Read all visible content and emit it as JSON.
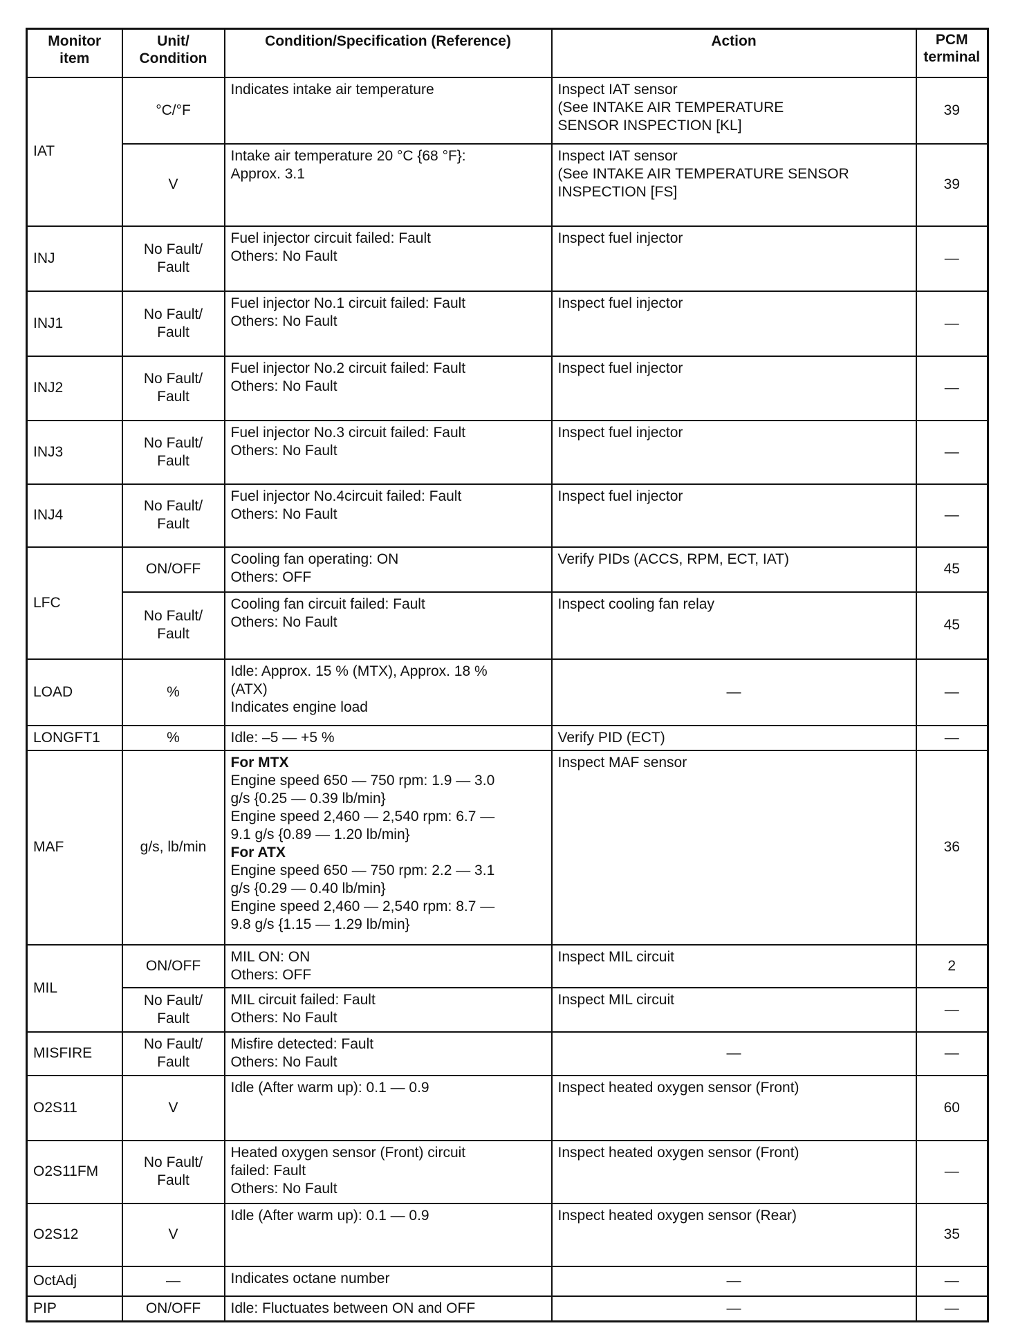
{
  "headers": [
    "Monitor\nitem",
    "Unit/\nCondition",
    "Condition/Specification (Reference)",
    "Action",
    "PCM\nterminal"
  ],
  "bold_lines": [
    "For MTX",
    "For ATX"
  ],
  "rows": [
    {
      "item": "IAT",
      "sub": [
        {
          "unit": "°C/°F",
          "condition": [
            "Indicates intake air temperature"
          ],
          "action": [
            "Inspect IAT sensor",
            "(See INTAKE AIR  TEMPERATURE",
            "  SENSOR INSPECTION [KL]"
          ],
          "pcm": "39",
          "h": 96
        },
        {
          "unit": "V",
          "condition": [
            "Intake air temperature 20 °C {68 °F}:",
            "Approx. 3.1"
          ],
          "action": [
            "Inspect IAT sensor",
            "(See INTAKE AIR TEMPERATURE SENSOR",
            "  INSPECTION [FS]"
          ],
          "pcm": "39",
          "h": 119
        }
      ]
    },
    {
      "item": "INJ",
      "sub": [
        {
          "unit": "No Fault/\nFault",
          "condition": [
            "Fuel injector circuit failed: Fault",
            "Others: No Fault"
          ],
          "action": [
            "Inspect fuel injector"
          ],
          "pcm": "—",
          "h": 94
        }
      ]
    },
    {
      "item": "INJ1",
      "sub": [
        {
          "unit": "No Fault/\nFault",
          "condition": [
            "Fuel injector No.1 circuit failed: Fault",
            "Others: No Fault"
          ],
          "action": [
            "Inspect fuel injector"
          ],
          "pcm": "—",
          "h": 94
        }
      ]
    },
    {
      "item": "INJ2",
      "sub": [
        {
          "unit": "No Fault/\nFault",
          "condition": [
            "Fuel injector No.2 circuit failed: Fault",
            "Others: No Fault"
          ],
          "action": [
            "Inspect fuel injector"
          ],
          "pcm": "—",
          "h": 93
        }
      ]
    },
    {
      "item": "INJ3",
      "sub": [
        {
          "unit": "No Fault/\nFault",
          "condition": [
            "Fuel injector No.3 circuit failed: Fault",
            "Others: No Fault"
          ],
          "action": [
            "Inspect fuel injector"
          ],
          "pcm": "—",
          "h": 92
        }
      ]
    },
    {
      "item": "INJ4",
      "sub": [
        {
          "unit": "No Fault/\nFault",
          "condition": [
            "Fuel injector No.4circuit failed: Fault",
            "Others: No Fault"
          ],
          "action": [
            "Inspect fuel injector"
          ],
          "pcm": "—",
          "h": 91
        }
      ]
    },
    {
      "item": "LFC",
      "sub": [
        {
          "unit": "ON/OFF",
          "condition": [
            "Cooling fan operating: ON",
            "Others: OFF"
          ],
          "action": [
            "Verify PIDs (ACCS, RPM, ECT, IAT)"
          ],
          "pcm": "45",
          "h": 65
        },
        {
          "unit": "No Fault/\nFault",
          "condition": [
            "Cooling fan circuit failed: Fault",
            "Others: No Fault"
          ],
          "action": [
            "Inspect cooling fan relay"
          ],
          "pcm": "45",
          "h": 97
        }
      ]
    },
    {
      "item": "LOAD",
      "sub": [
        {
          "unit": "%",
          "condition": [
            "Idle: Approx. 15 % (MTX), Approx. 18 %",
            "(ATX)",
            "Indicates engine load"
          ],
          "action": [
            "—"
          ],
          "action_center": true,
          "pcm": "—",
          "h": 96
        }
      ]
    },
    {
      "item": "LONGFT1",
      "sub": [
        {
          "unit": "%",
          "condition": [
            "Idle: –5 — +5 %"
          ],
          "action": [
            "Verify PID (ECT)"
          ],
          "pcm": "—",
          "h": 31
        }
      ]
    },
    {
      "item": "MAF",
      "sub": [
        {
          "unit": "g/s, lb/min",
          "condition": [
            "For MTX",
            "Engine speed 650 — 750 rpm: 1.9 — 3.0",
            "g/s {0.25 — 0.39 lb/min}",
            "Engine speed 2,460 — 2,540 rpm: 6.7 —",
            "9.1 g/s {0.89 — 1.20 lb/min}",
            "For ATX",
            "Engine speed 650 — 750 rpm: 2.2 — 3.1",
            "g/s {0.29 — 0.40 lb/min}",
            "Engine speed 2,460 — 2,540 rpm: 8.7 —",
            "9.8 g/s {1.15 — 1.29 lb/min}"
          ],
          "action": [
            "Inspect MAF sensor"
          ],
          "pcm": "36",
          "h": 281
        }
      ]
    },
    {
      "item": "MIL",
      "sub": [
        {
          "unit": "ON/OFF",
          "condition": [
            "MIL ON: ON",
            "Others: OFF"
          ],
          "action": [
            "Inspect MIL circuit"
          ],
          "pcm": "2",
          "h": 61
        },
        {
          "unit": "No Fault/\nFault",
          "condition": [
            "MIL circuit failed: Fault",
            "Others: No Fault"
          ],
          "action": [
            "Inspect MIL circuit"
          ],
          "pcm": "—",
          "h": 64
        }
      ]
    },
    {
      "item": "MISFIRE",
      "sub": [
        {
          "unit": "No Fault/\nFault",
          "condition": [
            "Misfire detected: Fault",
            "Others: No Fault"
          ],
          "action": [
            "—"
          ],
          "action_center": true,
          "pcm": "—",
          "h": 63
        }
      ]
    },
    {
      "item": "O2S11",
      "sub": [
        {
          "unit": "V",
          "condition": [
            "Idle (After warm up): 0.1 — 0.9"
          ],
          "action": [
            "Inspect heated oxygen sensor (Front)"
          ],
          "pcm": "60",
          "h": 94
        }
      ]
    },
    {
      "item": "O2S11FM",
      "sub": [
        {
          "unit": "No Fault/\nFault",
          "condition": [
            "Heated oxygen sensor (Front) circuit",
            "failed: Fault",
            "Others: No Fault"
          ],
          "action": [
            "Inspect heated oxygen sensor (Front)"
          ],
          "pcm": "—",
          "h": 91
        }
      ]
    },
    {
      "item": "O2S12",
      "sub": [
        {
          "unit": "V",
          "condition": [
            "Idle (After warm up): 0.1 — 0.9"
          ],
          "action": [
            "Inspect heated oxygen sensor (Rear)"
          ],
          "pcm": "35",
          "h": 91
        }
      ]
    },
    {
      "item": "OctAdj",
      "sub": [
        {
          "unit": "—",
          "condition": [
            "Indicates octane number"
          ],
          "action": [
            "—"
          ],
          "action_center": true,
          "pcm": "—",
          "h": 43
        }
      ]
    },
    {
      "item": "PIP",
      "sub": [
        {
          "unit": "ON/OFF",
          "condition": [
            "Idle: Fluctuates between ON and OFF"
          ],
          "action": [
            "—"
          ],
          "action_center": true,
          "pcm": "—",
          "h": 37
        }
      ]
    }
  ]
}
